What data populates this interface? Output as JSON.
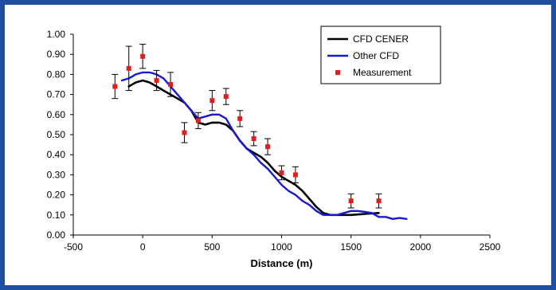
{
  "chart_data": {
    "type": "line",
    "title": "",
    "xlabel": "Distance (m)",
    "ylabel": "",
    "xlim": [
      -500,
      2500
    ],
    "ylim": [
      0,
      1.0
    ],
    "x_ticks": [
      "-500",
      "0",
      "500",
      "1000",
      "1500",
      "2000",
      "2500"
    ],
    "y_ticks": [
      "0.00",
      "0.10",
      "0.20",
      "0.30",
      "0.40",
      "0.50",
      "0.60",
      "0.70",
      "0.80",
      "0.90",
      "1.00"
    ],
    "grid": false,
    "legend_position": "top-right",
    "series": [
      {
        "name": "CFD CENER",
        "type": "line",
        "color": "#000000",
        "x": [
          -100,
          -50,
          0,
          50,
          100,
          150,
          200,
          250,
          300,
          350,
          400,
          450,
          500,
          550,
          600,
          650,
          700,
          750,
          800,
          850,
          900,
          950,
          1000,
          1050,
          1100,
          1150,
          1200,
          1250,
          1300,
          1350,
          1400,
          1500,
          1600,
          1700
        ],
        "y": [
          0.74,
          0.76,
          0.77,
          0.76,
          0.74,
          0.72,
          0.7,
          0.68,
          0.66,
          0.62,
          0.56,
          0.55,
          0.56,
          0.56,
          0.55,
          0.52,
          0.47,
          0.43,
          0.41,
          0.39,
          0.36,
          0.32,
          0.29,
          0.27,
          0.25,
          0.22,
          0.18,
          0.14,
          0.11,
          0.1,
          0.1,
          0.1,
          0.105,
          0.11
        ]
      },
      {
        "name": "Other CFD",
        "type": "line",
        "color": "#1a1acc",
        "x": [
          -150,
          -100,
          -50,
          0,
          50,
          100,
          150,
          200,
          250,
          300,
          350,
          400,
          450,
          500,
          550,
          600,
          650,
          700,
          750,
          800,
          850,
          900,
          950,
          1000,
          1050,
          1100,
          1150,
          1200,
          1250,
          1300,
          1350,
          1400,
          1450,
          1500,
          1550,
          1600,
          1650,
          1700,
          1750,
          1800,
          1850,
          1900
        ],
        "y": [
          0.77,
          0.78,
          0.8,
          0.81,
          0.81,
          0.8,
          0.78,
          0.74,
          0.7,
          0.66,
          0.62,
          0.58,
          0.59,
          0.6,
          0.6,
          0.58,
          0.52,
          0.47,
          0.43,
          0.4,
          0.36,
          0.33,
          0.29,
          0.25,
          0.22,
          0.2,
          0.17,
          0.15,
          0.12,
          0.1,
          0.1,
          0.1,
          0.11,
          0.12,
          0.12,
          0.115,
          0.11,
          0.09,
          0.09,
          0.08,
          0.085,
          0.08
        ]
      },
      {
        "name": "Measurement",
        "type": "scatter",
        "color": "#e01e1e",
        "x": [
          -200,
          -100,
          0,
          100,
          200,
          300,
          400,
          500,
          600,
          700,
          800,
          900,
          1000,
          1100,
          1500,
          1700
        ],
        "y": [
          0.74,
          0.83,
          0.89,
          0.77,
          0.75,
          0.51,
          0.57,
          0.67,
          0.69,
          0.58,
          0.48,
          0.44,
          0.31,
          0.3,
          0.17,
          0.17
        ],
        "error": [
          0.06,
          0.11,
          0.06,
          0.05,
          0.06,
          0.05,
          0.04,
          0.05,
          0.04,
          0.04,
          0.035,
          0.04,
          0.035,
          0.04,
          0.035,
          0.035
        ]
      }
    ]
  }
}
